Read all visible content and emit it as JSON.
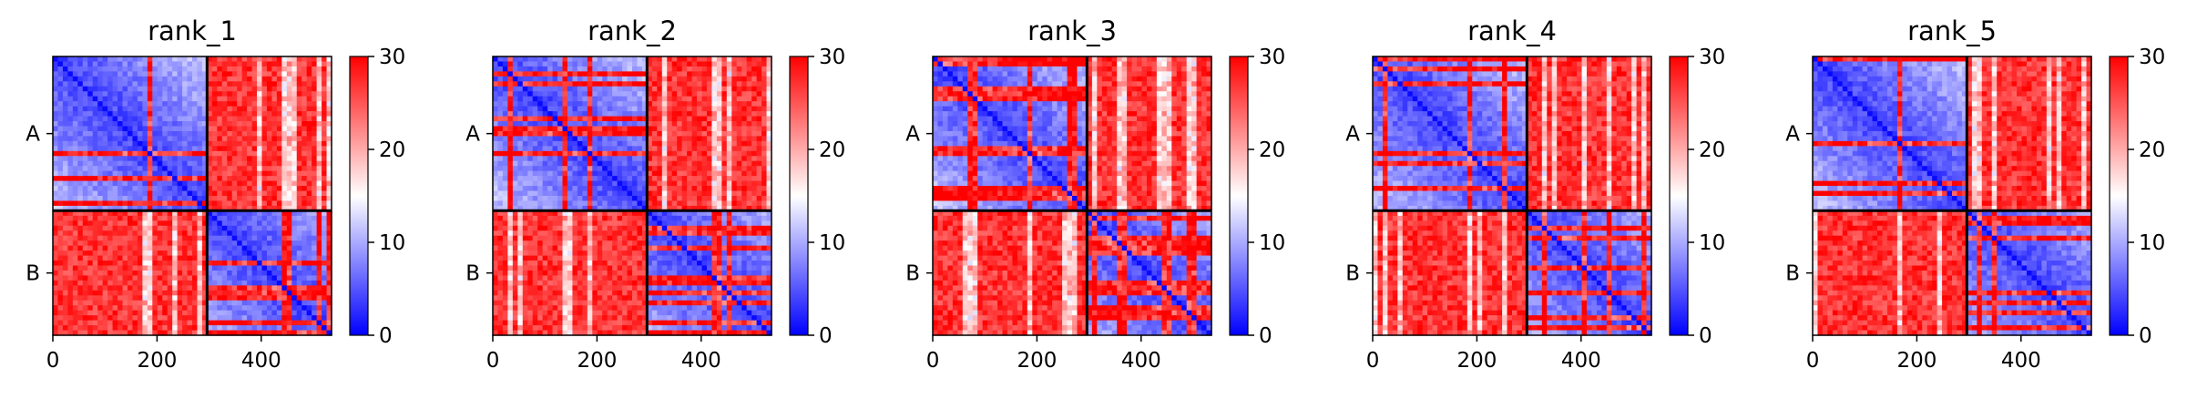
{
  "chart_data": [
    {
      "type": "heatmap",
      "title": "rank_1",
      "xlabel": "",
      "ylabel": "",
      "x_ticks": [
        0,
        200,
        400
      ],
      "xlim": [
        0,
        535
      ],
      "chain_boundary": 296,
      "y_ticks": [
        "A",
        "B"
      ],
      "colorbar": {
        "min": 0,
        "max": 30,
        "ticks": [
          0,
          10,
          20,
          30
        ],
        "colormap": "bwr"
      },
      "intra_chain_band_strength": 0.85
    },
    {
      "type": "heatmap",
      "title": "rank_2",
      "xlabel": "",
      "ylabel": "",
      "x_ticks": [
        0,
        200,
        400
      ],
      "xlim": [
        0,
        535
      ],
      "chain_boundary": 296,
      "y_ticks": [
        "A",
        "B"
      ],
      "colorbar": {
        "min": 0,
        "max": 30,
        "ticks": [
          0,
          10,
          20,
          30
        ],
        "colormap": "bwr"
      },
      "intra_chain_band_strength": 0.8
    },
    {
      "type": "heatmap",
      "title": "rank_3",
      "xlabel": "",
      "ylabel": "",
      "x_ticks": [
        0,
        200,
        400
      ],
      "xlim": [
        0,
        535
      ],
      "chain_boundary": 296,
      "y_ticks": [
        "A",
        "B"
      ],
      "colorbar": {
        "min": 0,
        "max": 30,
        "ticks": [
          0,
          10,
          20,
          30
        ],
        "colormap": "bwr"
      },
      "intra_chain_band_strength": 0.75
    },
    {
      "type": "heatmap",
      "title": "rank_4",
      "xlabel": "",
      "ylabel": "",
      "x_ticks": [
        0,
        200,
        400
      ],
      "xlim": [
        0,
        535
      ],
      "chain_boundary": 296,
      "y_ticks": [
        "A",
        "B"
      ],
      "colorbar": {
        "min": 0,
        "max": 30,
        "ticks": [
          0,
          10,
          20,
          30
        ],
        "colormap": "bwr"
      },
      "intra_chain_band_strength": 0.82
    },
    {
      "type": "heatmap",
      "title": "rank_5",
      "xlabel": "",
      "ylabel": "",
      "x_ticks": [
        0,
        200,
        400
      ],
      "xlim": [
        0,
        535
      ],
      "chain_boundary": 296,
      "y_ticks": [
        "A",
        "B"
      ],
      "colorbar": {
        "min": 0,
        "max": 30,
        "ticks": [
          0,
          10,
          20,
          30
        ],
        "colormap": "bwr"
      },
      "intra_chain_band_strength": 0.78
    }
  ],
  "colors": {
    "low": "#0000ff",
    "mid": "#ffffff",
    "high": "#ff0000"
  }
}
